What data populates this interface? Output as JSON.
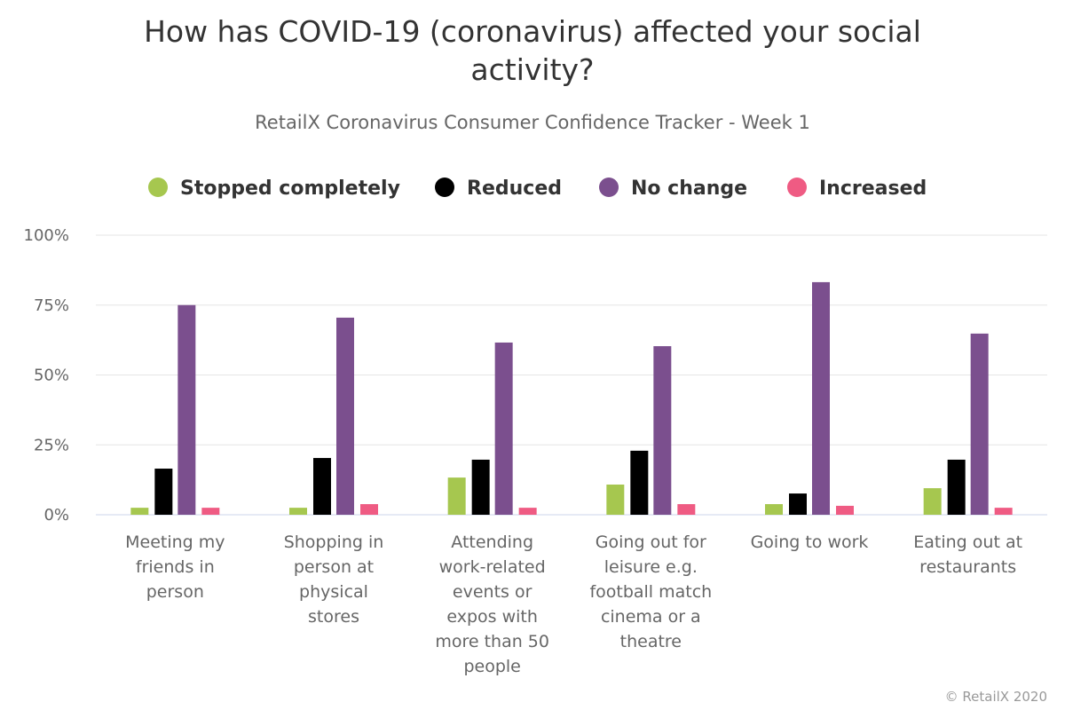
{
  "chart_data": {
    "type": "bar",
    "title": "How has COVID-19 (coronavirus) affected your social activity?",
    "title_lines": [
      "How has COVID-19 (coronavirus) affected your social",
      "activity?"
    ],
    "subtitle": "RetailX Coronavirus Consumer Confidence Tracker - Week 1",
    "xlabel": "",
    "ylabel": "",
    "ylim": [
      0,
      100
    ],
    "yticks": [
      "0%",
      "25%",
      "50%",
      "75%",
      "100%"
    ],
    "ytick_values": [
      0,
      25,
      50,
      75,
      100
    ],
    "grid": true,
    "legend_position": "top",
    "categories": [
      [
        "Meeting my",
        "friends in",
        "person"
      ],
      [
        "Shopping in",
        "person at",
        "physical",
        "stores"
      ],
      [
        "Attending",
        "work-related",
        "events or",
        "expos with",
        "more than 50",
        "people"
      ],
      [
        "Going out for",
        "leisure e.g.",
        "football match",
        "cinema or a",
        "theatre"
      ],
      [
        "Going to work"
      ],
      [
        "Eating out at",
        "restaurants"
      ]
    ],
    "series": [
      {
        "name": "Stopped completely",
        "color": "#a6c74f",
        "values": [
          2.5,
          2.5,
          13.3,
          10.8,
          3.8,
          9.5
        ]
      },
      {
        "name": "Reduced",
        "color": "#000000",
        "values": [
          16.5,
          20.3,
          19.7,
          22.9,
          7.6,
          19.7
        ]
      },
      {
        "name": "No change",
        "color": "#7b4f8e",
        "values": [
          75,
          70.5,
          61.6,
          60.3,
          83.2,
          64.8
        ]
      },
      {
        "name": "Increased",
        "color": "#ef5b83",
        "values": [
          2.5,
          3.8,
          2.5,
          3.8,
          3.2,
          2.5
        ]
      }
    ],
    "credit": "© RetailX 2020"
  }
}
